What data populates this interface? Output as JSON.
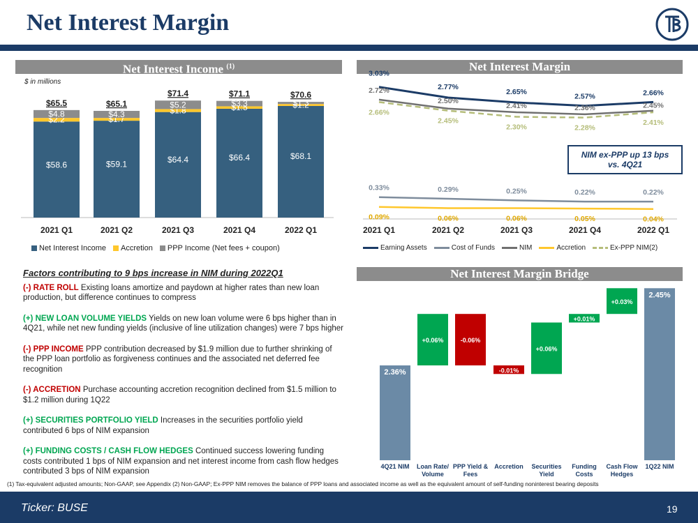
{
  "page": {
    "title": "Net Interest Margin",
    "ticker": "Ticker:  BUSE",
    "page_number": "19",
    "footnote": "(1) Tax-equivalent adjusted amounts; Non-GAAP, see Appendix  (2) Non-GAAP; Ex-PPP NIM removes the balance of PPP loans and associated income as well as the equivalent amount of self-funding noninterest bearing deposits"
  },
  "colors": {
    "navy": "#1b3b66",
    "bar_nii": "#36607f",
    "bar_accretion": "#ffc72c",
    "bar_ppp": "#8c8c8c",
    "line_cof": "#7e8c9c",
    "line_nim": "#707070",
    "line_exppp": "#b5bd7a",
    "green": "#00a651",
    "red": "#c00000",
    "wf_total": "#6b8aa6"
  },
  "nii_panel": {
    "header": "Net Interest Income",
    "header_sup": "(1)",
    "units": "$ in millions"
  },
  "nim_panel": {
    "header": "Net Interest Margin",
    "callout_line1": "NIM ex-PPP up 13 bps",
    "callout_line2": "vs. 4Q21"
  },
  "factors": {
    "heading": "Factors contributing to 9 bps increase in NIM during 2022Q1",
    "items": [
      {
        "sign": "neg",
        "label": "(-) RATE ROLL",
        "text": " Existing loans amortize and paydown at higher rates than new loan production, but difference continues to compress"
      },
      {
        "sign": "pos",
        "label": "(+) NEW LOAN VOLUME YIELDS",
        "text": " Yields on new loan volume were 6 bps higher than in 4Q21, while net new funding yields (inclusive of line utilization changes) were 7 bps higher"
      },
      {
        "sign": "neg",
        "label": "(-) PPP INCOME",
        "text": " PPP contribution decreased by $1.9 million due to further shrinking of the PPP loan portfolio as forgiveness continues and the associated net deferred fee recognition"
      },
      {
        "sign": "neg",
        "label": "(-) ACCRETION",
        "text": " Purchase accounting accretion recognition declined from $1.5 million to $1.2 million during 1Q22"
      },
      {
        "sign": "pos",
        "label": "(+) SECURITIES PORTFOLIO YIELD",
        "text": " Increases in the securities portfolio yield contributed 6 bps of NIM expansion"
      },
      {
        "sign": "pos",
        "label": "(+) FUNDING COSTS / CASH FLOW HEDGES",
        "text": " Continued success lowering funding costs contributed 1 bps of NIM expansion and net interest income from cash flow hedges contributed 3 bps of NIM expansion"
      }
    ]
  },
  "bridge_panel": {
    "header": "Net Interest Margin Bridge"
  },
  "chart_data": [
    {
      "type": "bar",
      "stacked": true,
      "categories": [
        "2021 Q1",
        "2021 Q2",
        "2021 Q3",
        "2021 Q4",
        "2022 Q1"
      ],
      "series": [
        {
          "name": "Net Interest Income",
          "values": [
            58.6,
            59.1,
            64.4,
            66.4,
            68.1
          ],
          "labels": [
            "$58.6",
            "$59.1",
            "$64.4",
            "$66.4",
            "$68.1"
          ]
        },
        {
          "name": "Accretion",
          "values": [
            2.2,
            1.7,
            1.8,
            1.5,
            1.2
          ],
          "labels": [
            "$2.2",
            "$1.7",
            "$1.8",
            "$1.5",
            "$1.2"
          ]
        },
        {
          "name": "PPP Income (Net fees + coupon)",
          "values": [
            4.8,
            4.3,
            5.2,
            3.3,
            1.3
          ],
          "labels": [
            "$4.8",
            "$4.3",
            "$5.2",
            "$3.3",
            "$1.3"
          ]
        }
      ],
      "totals": [
        "$65.5",
        "$65.1",
        "$71.4",
        "$71.1",
        "$70.6"
      ],
      "ylim": [
        0,
        75
      ]
    },
    {
      "type": "line",
      "categories": [
        "2021 Q1",
        "2021 Q2",
        "2021 Q3",
        "2021 Q4",
        "2022 Q1"
      ],
      "series": [
        {
          "name": "Earning Assets",
          "values": [
            3.03,
            2.77,
            2.65,
            2.57,
            2.66
          ],
          "labels": [
            "3.03%",
            "2.77%",
            "2.65%",
            "2.57%",
            "2.66%"
          ]
        },
        {
          "name": "Cost of Funds",
          "values": [
            0.33,
            0.29,
            0.25,
            0.22,
            0.22
          ],
          "labels": [
            "0.33%",
            "0.29%",
            "0.25%",
            "0.22%",
            "0.22%"
          ]
        },
        {
          "name": "NIM",
          "values": [
            2.72,
            2.5,
            2.41,
            2.36,
            2.45
          ],
          "labels": [
            "2.72%",
            "2.50%",
            "2.41%",
            "2.36%",
            "2.45%"
          ]
        },
        {
          "name": "Accretion",
          "values": [
            0.09,
            0.06,
            0.06,
            0.05,
            0.04
          ],
          "labels": [
            "0.09%",
            "0.06%",
            "0.06%",
            "0.05%",
            "0.04%"
          ]
        },
        {
          "name": "Ex-PPP NIM(2)",
          "values": [
            2.66,
            2.45,
            2.3,
            2.28,
            2.41
          ],
          "labels": [
            "2.66%",
            "2.45%",
            "2.30%",
            "2.28%",
            "2.41%"
          ]
        }
      ],
      "ylim": [
        0,
        3.2
      ]
    },
    {
      "type": "waterfall",
      "categories": [
        "4Q21 NIM",
        "Loan Rate/ Volume",
        "PPP Yield & Fees",
        "Accretion",
        "Securities Yield",
        "Funding Costs",
        "Cash Flow Hedges",
        "1Q22 NIM"
      ],
      "values": [
        2.36,
        0.06,
        -0.06,
        -0.01,
        0.06,
        0.01,
        0.03,
        2.45
      ],
      "labels": [
        "2.36%",
        "+0.06%",
        "-0.06%",
        "-0.01%",
        "+0.06%",
        "+0.01%",
        "+0.03%",
        "2.45%"
      ],
      "kinds": [
        "total",
        "delta",
        "delta",
        "delta",
        "delta",
        "delta",
        "delta",
        "total"
      ]
    }
  ]
}
